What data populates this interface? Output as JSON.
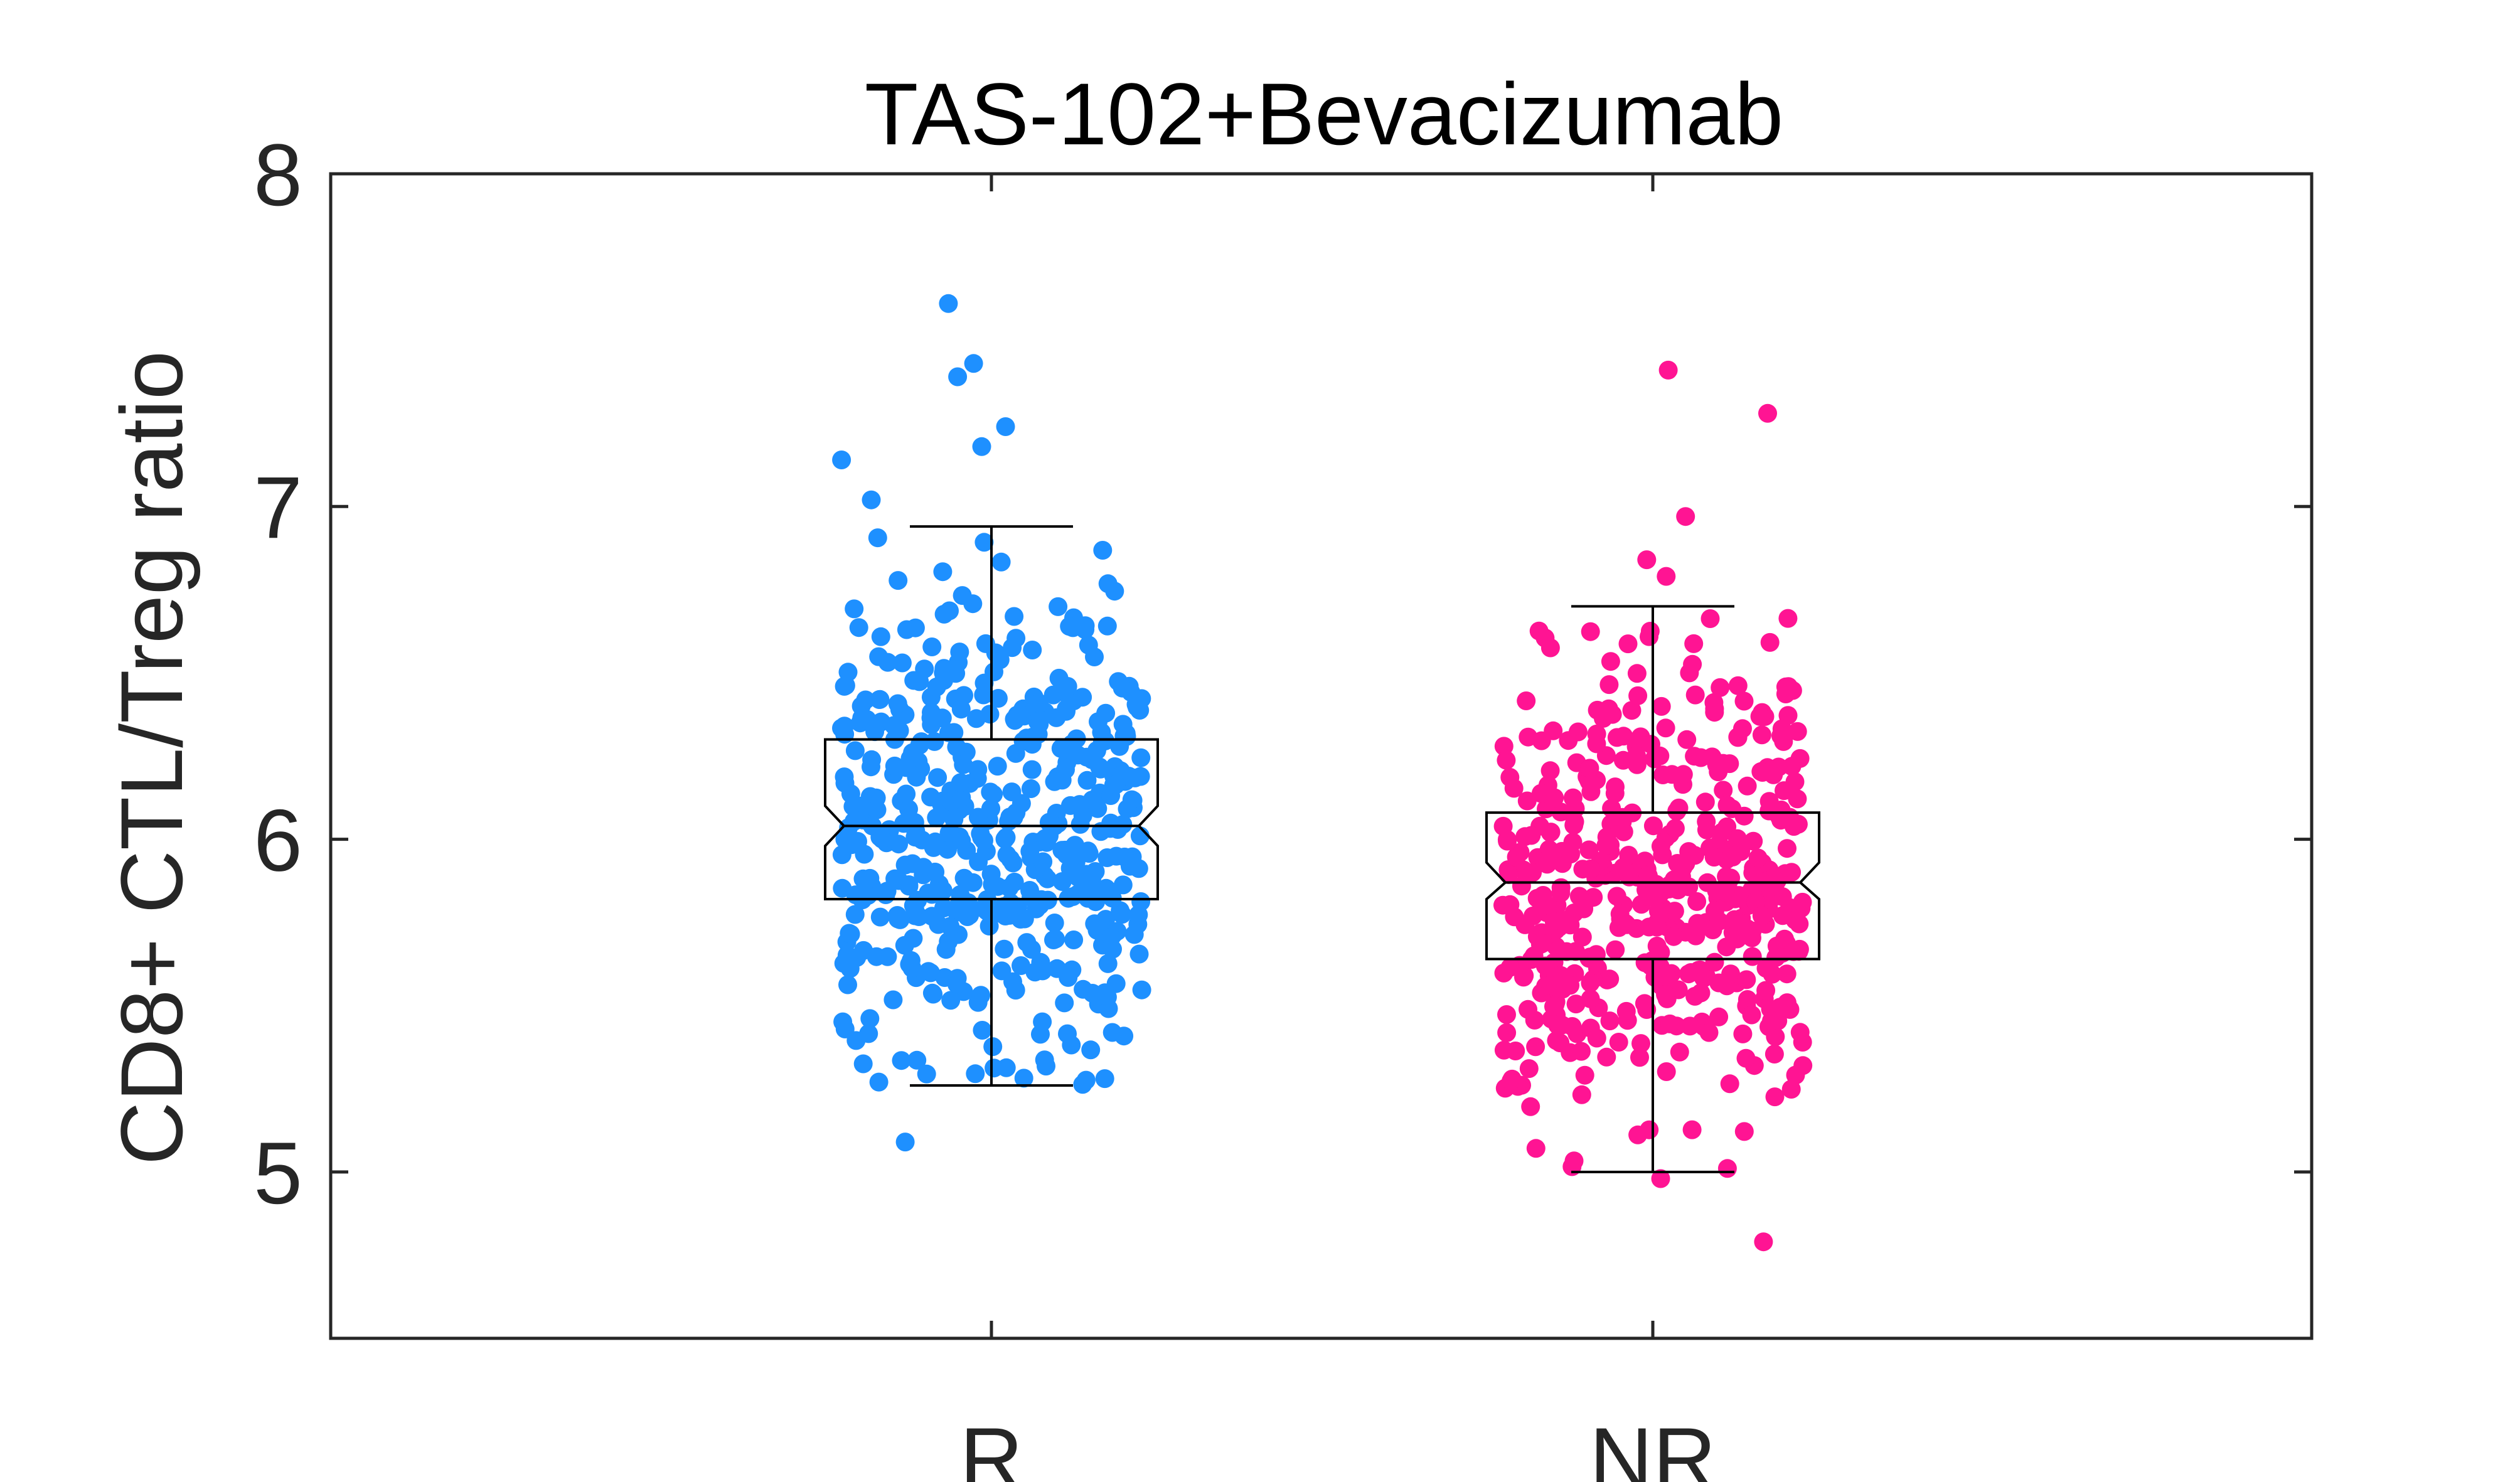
{
  "chart_data": {
    "type": "scatter",
    "subtype": "boxplot-with-jittered-points",
    "title": "TAS-102+Bevacizumab",
    "ylabel": "CD8+ CTL/Treg ratio",
    "xlabel": "",
    "categories": [
      "R",
      "NR"
    ],
    "ylim": [
      4.5,
      8
    ],
    "yticks": [
      5,
      6,
      7,
      8
    ],
    "grid": false,
    "legend": "none",
    "series": [
      {
        "category": "R",
        "color": "#1e90ff",
        "box": {
          "whisker_low": 5.26,
          "q1": 5.82,
          "median": 6.04,
          "q3": 6.3,
          "whisker_high": 6.94,
          "notch_low": 5.98,
          "notch_high": 6.1
        },
        "outliers": [
          7.61,
          7.43,
          7.39,
          7.24,
          7.18,
          7.14,
          7.02,
          5.09
        ]
      },
      {
        "category": "NR",
        "color": "#ff1493",
        "box": {
          "whisker_low": 5.0,
          "q1": 5.64,
          "median": 5.87,
          "q3": 6.08,
          "whisker_high": 6.7,
          "notch_low": 5.82,
          "notch_high": 5.93
        },
        "outliers": [
          7.41,
          7.28,
          6.97,
          6.84,
          6.79,
          4.98,
          4.79
        ]
      }
    ],
    "n_points_per_group": 500
  }
}
